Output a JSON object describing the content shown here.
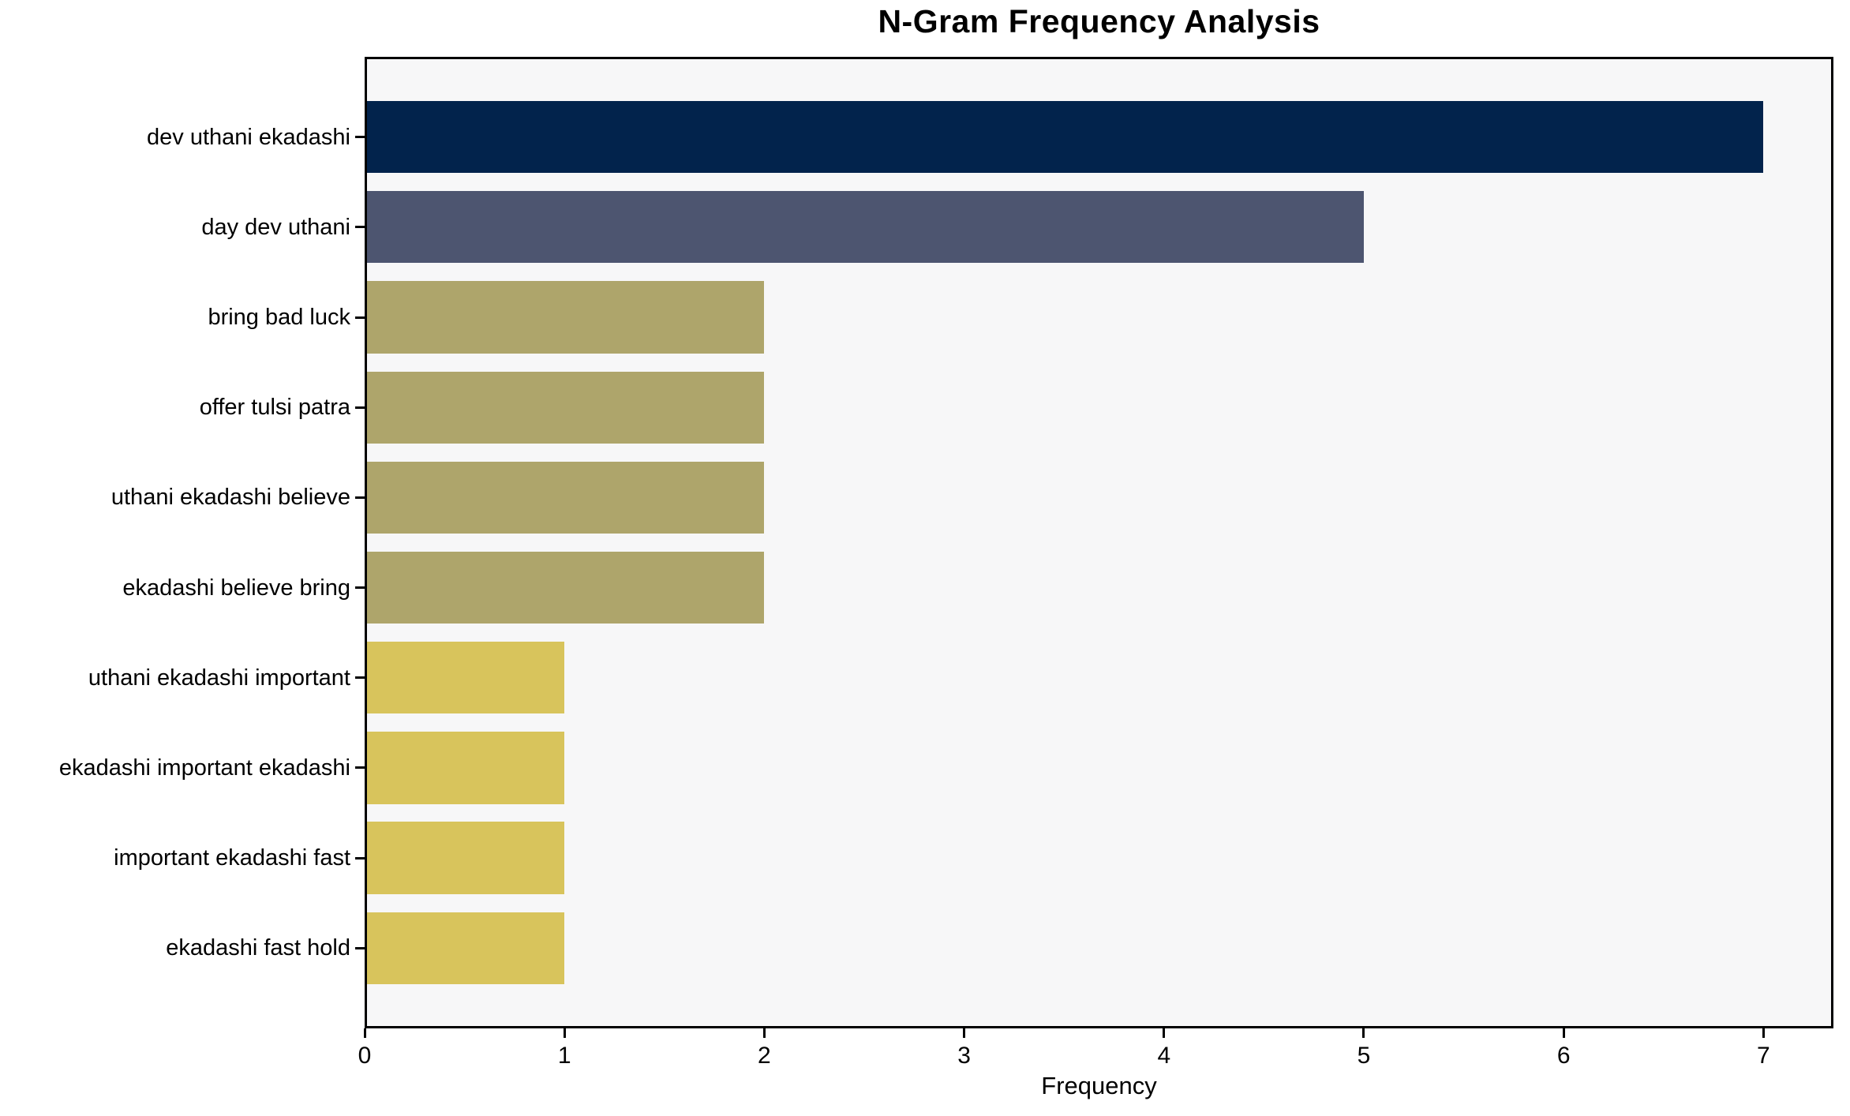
{
  "chart_data": {
    "type": "bar",
    "orientation": "horizontal",
    "title": "N-Gram Frequency Analysis",
    "xlabel": "Frequency",
    "ylabel": "",
    "categories": [
      "dev uthani ekadashi",
      "day dev uthani",
      "bring bad luck",
      "offer tulsi patra",
      "uthani ekadashi believe",
      "ekadashi believe bring",
      "uthani ekadashi important",
      "ekadashi important ekadashi",
      "important ekadashi fast",
      "ekadashi fast hold"
    ],
    "values": [
      7,
      5,
      2,
      2,
      2,
      2,
      1,
      1,
      1,
      1
    ],
    "bar_colors": [
      "#02234c",
      "#4d5570",
      "#aea56b",
      "#aea56b",
      "#aea56b",
      "#aea56b",
      "#d8c45c",
      "#d8c45c",
      "#d8c45c",
      "#d8c45c"
    ],
    "x_ticks": [
      0,
      1,
      2,
      3,
      4,
      5,
      6,
      7
    ],
    "xlim": [
      0,
      7.35
    ],
    "grid": false,
    "legend": null,
    "colors": {
      "plot_background": "#f7f7f8",
      "figure_background": "#ffffff",
      "axis": "#000000",
      "text": "#000000"
    }
  }
}
